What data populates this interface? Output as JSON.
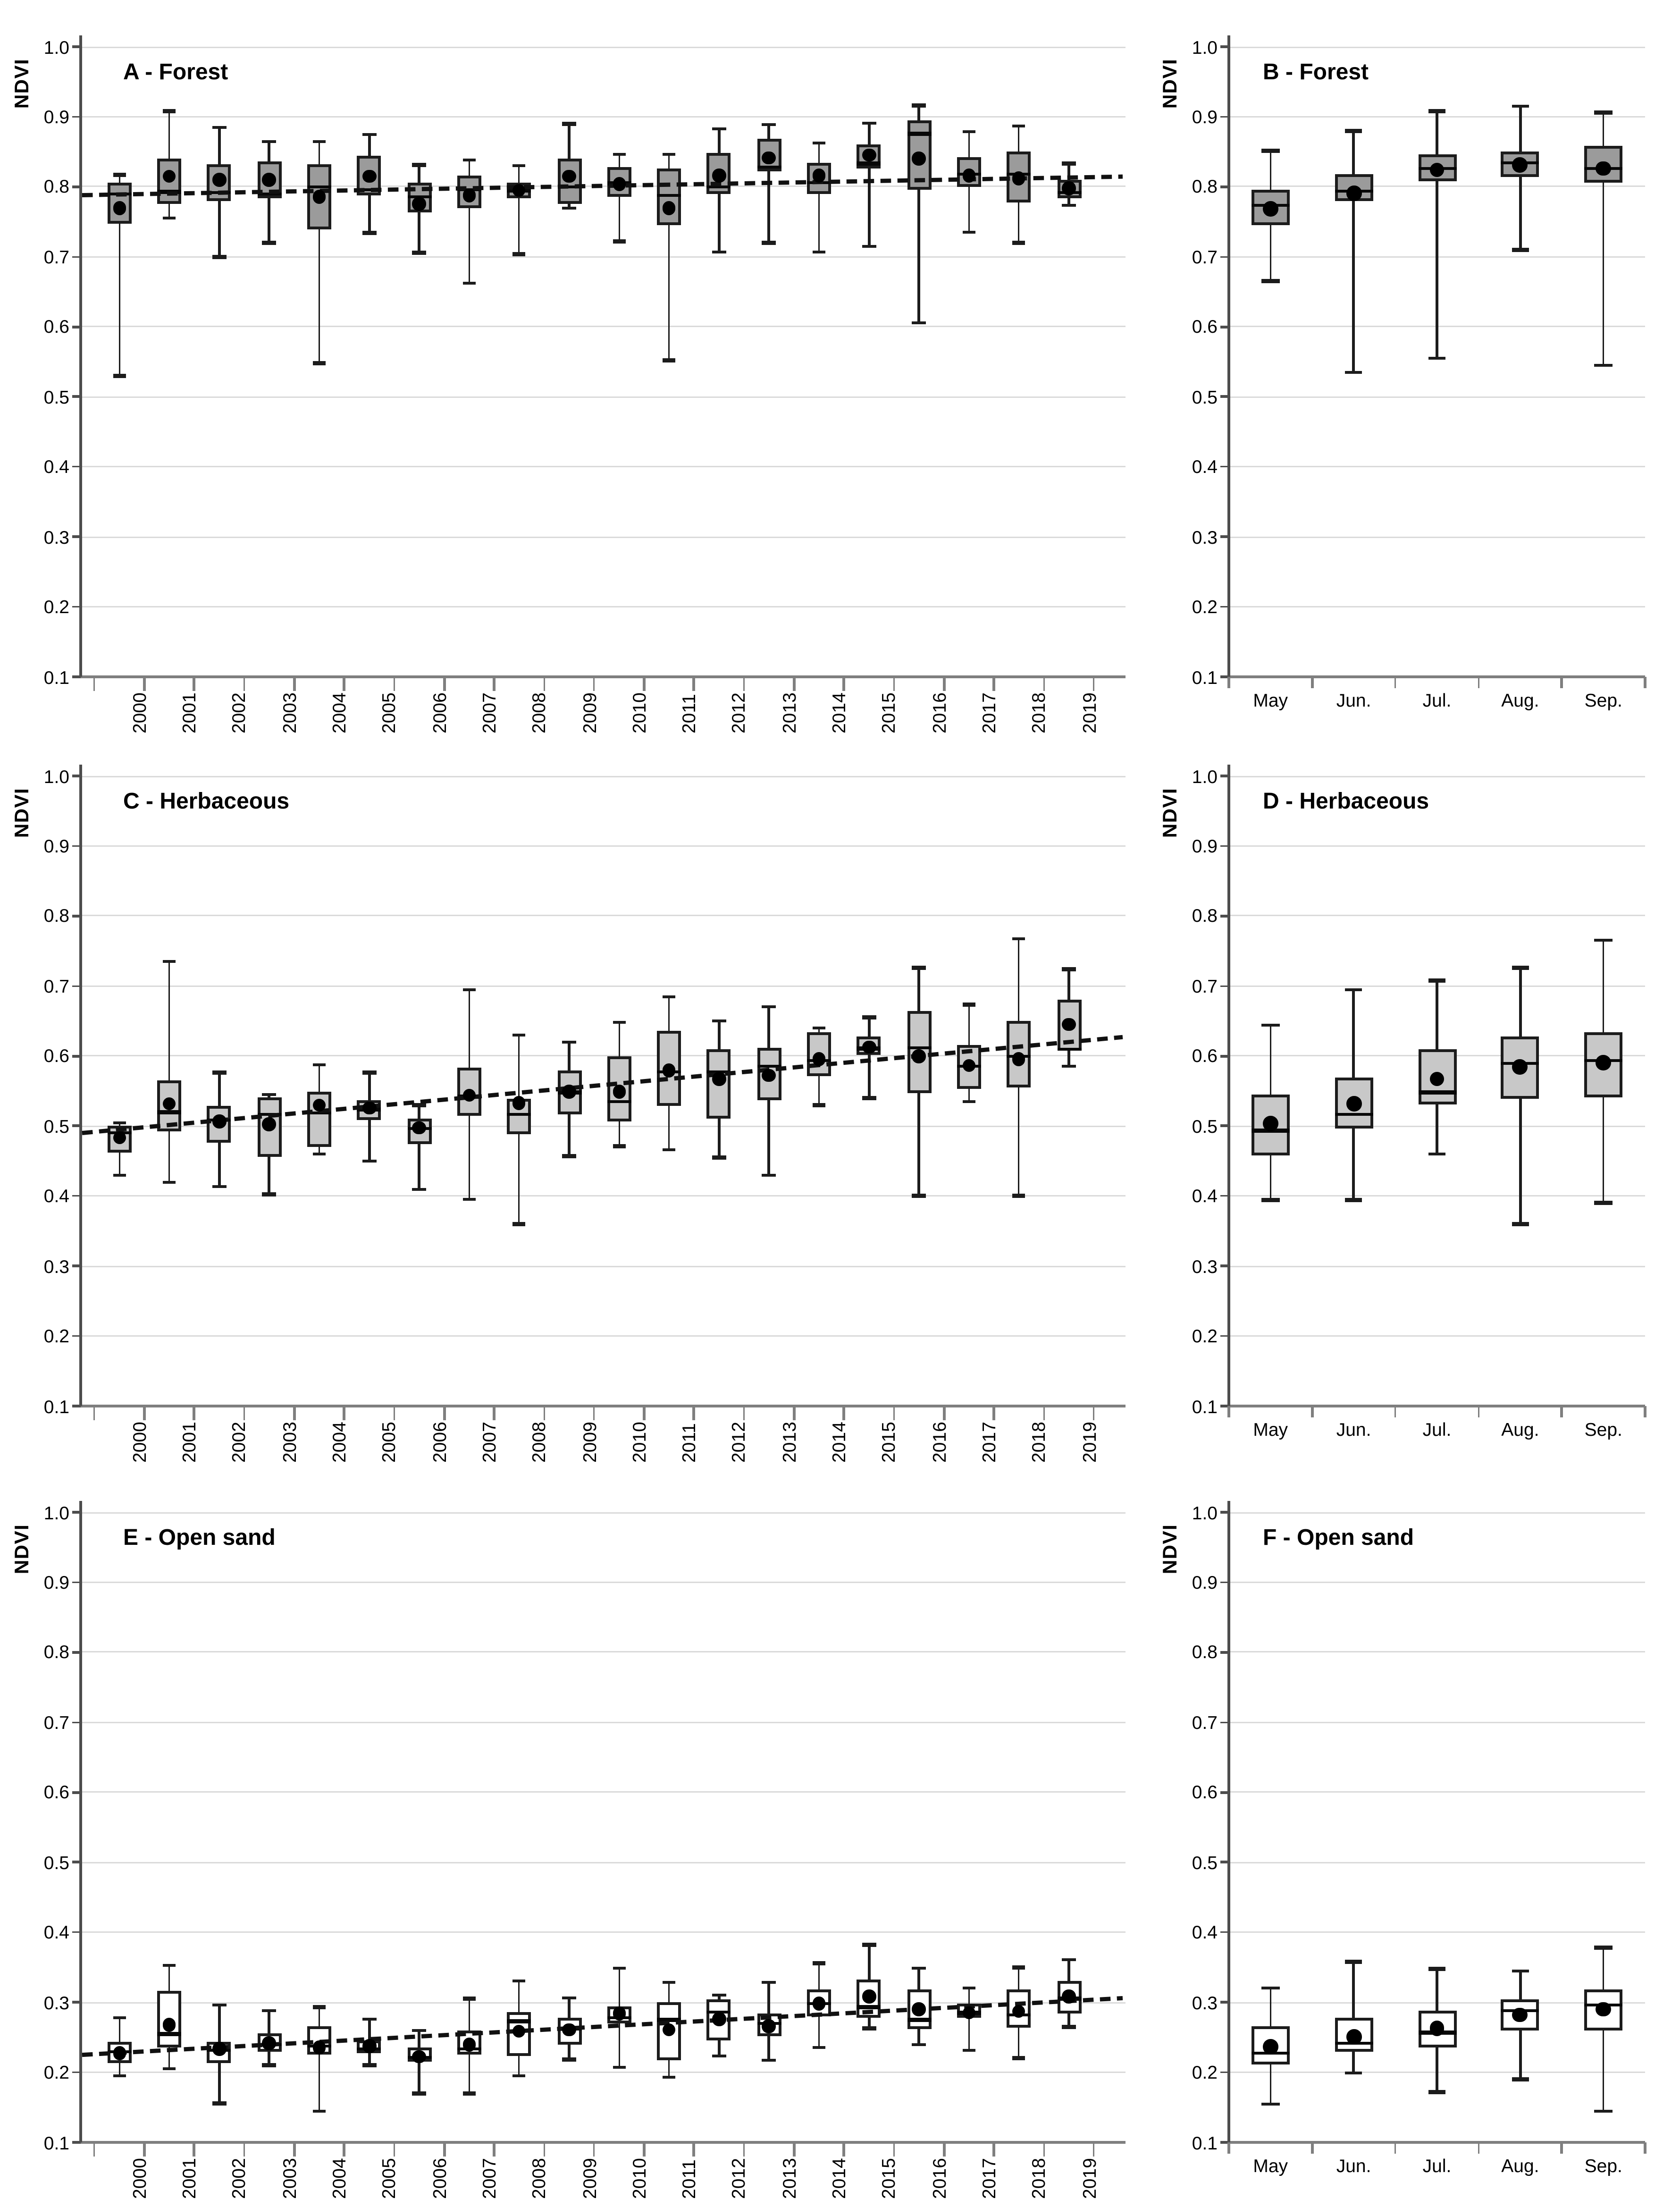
{
  "figure": {
    "ylabel": "NDVI",
    "yticks": [
      "1.0",
      "0.9",
      "0.8",
      "0.7",
      "0.6",
      "0.5",
      "0.4",
      "0.3",
      "0.2",
      "0.1"
    ],
    "colors": {
      "forest_fill": "#9b9b9b",
      "herbaceous_fill": "#c8c8c8",
      "open_sand_fill": "#ffffff",
      "box_border": "#1c1c1c",
      "mean_dot": "#000000",
      "trend_line": "#111111",
      "gridline": "#dadada",
      "axis": "#7f7f7f"
    }
  },
  "chart_data": [
    {
      "id": "A",
      "title": "A - Forest",
      "type": "box",
      "ylabel": "NDVI",
      "ylim": [
        0.1,
        1.0
      ],
      "grid": true,
      "fill": "#9b9b9b",
      "column": "left",
      "categories": [
        "2000",
        "2001",
        "2002",
        "2003",
        "2004",
        "2005",
        "2006",
        "2007",
        "2008",
        "2009",
        "2010",
        "2011",
        "2012",
        "2013",
        "2014",
        "2015",
        "2016",
        "2017",
        "2018",
        "2019"
      ],
      "boxes": [
        {
          "lo": 0.53,
          "q1": 0.748,
          "med": 0.79,
          "q3": 0.805,
          "hi": 0.817,
          "mean": 0.77
        },
        {
          "lo": 0.755,
          "q1": 0.775,
          "med": 0.793,
          "q3": 0.84,
          "hi": 0.908,
          "mean": 0.815
        },
        {
          "lo": 0.7,
          "q1": 0.78,
          "med": 0.792,
          "q3": 0.833,
          "hi": 0.885,
          "mean": 0.81
        },
        {
          "lo": 0.72,
          "q1": 0.784,
          "med": 0.79,
          "q3": 0.836,
          "hi": 0.865,
          "mean": 0.81
        },
        {
          "lo": 0.548,
          "q1": 0.74,
          "med": 0.8,
          "q3": 0.833,
          "hi": 0.864,
          "mean": 0.786
        },
        {
          "lo": 0.734,
          "q1": 0.788,
          "med": 0.796,
          "q3": 0.845,
          "hi": 0.875,
          "mean": 0.815
        },
        {
          "lo": 0.706,
          "q1": 0.764,
          "med": 0.786,
          "q3": 0.805,
          "hi": 0.831,
          "mean": 0.776
        },
        {
          "lo": 0.662,
          "q1": 0.77,
          "med": 0.796,
          "q3": 0.815,
          "hi": 0.838,
          "mean": 0.788
        },
        {
          "lo": 0.704,
          "q1": 0.784,
          "med": 0.795,
          "q3": 0.806,
          "hi": 0.83,
          "mean": 0.795
        },
        {
          "lo": 0.77,
          "q1": 0.776,
          "med": 0.8,
          "q3": 0.84,
          "hi": 0.89,
          "mean": 0.815
        },
        {
          "lo": 0.722,
          "q1": 0.786,
          "med": 0.805,
          "q3": 0.828,
          "hi": 0.846,
          "mean": 0.804
        },
        {
          "lo": 0.552,
          "q1": 0.745,
          "med": 0.788,
          "q3": 0.827,
          "hi": 0.846,
          "mean": 0.77
        },
        {
          "lo": 0.707,
          "q1": 0.79,
          "med": 0.8,
          "q3": 0.848,
          "hi": 0.883,
          "mean": 0.816
        },
        {
          "lo": 0.72,
          "q1": 0.822,
          "med": 0.828,
          "q3": 0.868,
          "hi": 0.889,
          "mean": 0.841
        },
        {
          "lo": 0.707,
          "q1": 0.79,
          "med": 0.806,
          "q3": 0.835,
          "hi": 0.863,
          "mean": 0.816
        },
        {
          "lo": 0.715,
          "q1": 0.826,
          "med": 0.833,
          "q3": 0.861,
          "hi": 0.891,
          "mean": 0.845
        },
        {
          "lo": 0.605,
          "q1": 0.796,
          "med": 0.876,
          "q3": 0.894,
          "hi": 0.916,
          "mean": 0.84
        },
        {
          "lo": 0.735,
          "q1": 0.8,
          "med": 0.818,
          "q3": 0.842,
          "hi": 0.879,
          "mean": 0.816
        },
        {
          "lo": 0.72,
          "q1": 0.778,
          "med": 0.818,
          "q3": 0.85,
          "hi": 0.887,
          "mean": 0.812
        },
        {
          "lo": 0.774,
          "q1": 0.784,
          "med": 0.792,
          "q3": 0.809,
          "hi": 0.833,
          "mean": 0.798
        }
      ],
      "trend": {
        "start": 0.788,
        "end": 0.8145
      }
    },
    {
      "id": "B",
      "title": "B - Forest",
      "type": "box",
      "ylabel": "NDVI",
      "ylim": [
        0.1,
        1.0
      ],
      "grid": true,
      "fill": "#9b9b9b",
      "column": "right",
      "categories": [
        "May",
        "Jun.",
        "Jul.",
        "Aug.",
        "Sep."
      ],
      "boxes": [
        {
          "lo": 0.665,
          "q1": 0.745,
          "med": 0.774,
          "q3": 0.796,
          "hi": 0.851,
          "mean": 0.769
        },
        {
          "lo": 0.535,
          "q1": 0.779,
          "med": 0.794,
          "q3": 0.818,
          "hi": 0.88,
          "mean": 0.79
        },
        {
          "lo": 0.555,
          "q1": 0.808,
          "med": 0.826,
          "q3": 0.847,
          "hi": 0.908,
          "mean": 0.824
        },
        {
          "lo": 0.71,
          "q1": 0.814,
          "med": 0.834,
          "q3": 0.851,
          "hi": 0.915,
          "mean": 0.831
        },
        {
          "lo": 0.545,
          "q1": 0.806,
          "med": 0.826,
          "q3": 0.859,
          "hi": 0.906,
          "mean": 0.826
        }
      ],
      "trend": null
    },
    {
      "id": "C",
      "title": "C - Herbaceous",
      "type": "box",
      "ylabel": "NDVI",
      "ylim": [
        0.1,
        1.0
      ],
      "grid": true,
      "fill": "#c8c8c8",
      "column": "left",
      "categories": [
        "2000",
        "2001",
        "2002",
        "2003",
        "2004",
        "2005",
        "2006",
        "2007",
        "2008",
        "2009",
        "2010",
        "2011",
        "2012",
        "2013",
        "2014",
        "2015",
        "2016",
        "2017",
        "2018",
        "2019"
      ],
      "boxes": [
        {
          "lo": 0.43,
          "q1": 0.462,
          "med": 0.49,
          "q3": 0.5,
          "hi": 0.505,
          "mean": 0.483
        },
        {
          "lo": 0.42,
          "q1": 0.492,
          "med": 0.52,
          "q3": 0.565,
          "hi": 0.735,
          "mean": 0.532
        },
        {
          "lo": 0.413,
          "q1": 0.477,
          "med": 0.509,
          "q3": 0.528,
          "hi": 0.576,
          "mean": 0.507
        },
        {
          "lo": 0.402,
          "q1": 0.455,
          "med": 0.517,
          "q3": 0.541,
          "hi": 0.545,
          "mean": 0.502
        },
        {
          "lo": 0.46,
          "q1": 0.47,
          "med": 0.519,
          "q3": 0.548,
          "hi": 0.587,
          "mean": 0.53
        },
        {
          "lo": 0.45,
          "q1": 0.508,
          "med": 0.524,
          "q3": 0.536,
          "hi": 0.576,
          "mean": 0.526
        },
        {
          "lo": 0.41,
          "q1": 0.475,
          "med": 0.496,
          "q3": 0.511,
          "hi": 0.53,
          "mean": 0.497
        },
        {
          "lo": 0.395,
          "q1": 0.515,
          "med": 0.542,
          "q3": 0.583,
          "hi": 0.695,
          "mean": 0.544
        },
        {
          "lo": 0.36,
          "q1": 0.488,
          "med": 0.517,
          "q3": 0.538,
          "hi": 0.63,
          "mean": 0.533
        },
        {
          "lo": 0.457,
          "q1": 0.517,
          "med": 0.548,
          "q3": 0.58,
          "hi": 0.62,
          "mean": 0.549
        },
        {
          "lo": 0.471,
          "q1": 0.507,
          "med": 0.535,
          "q3": 0.6,
          "hi": 0.648,
          "mean": 0.549
        },
        {
          "lo": 0.466,
          "q1": 0.528,
          "med": 0.577,
          "q3": 0.636,
          "hi": 0.684,
          "mean": 0.579
        },
        {
          "lo": 0.455,
          "q1": 0.51,
          "med": 0.577,
          "q3": 0.609,
          "hi": 0.65,
          "mean": 0.567
        },
        {
          "lo": 0.43,
          "q1": 0.537,
          "med": 0.586,
          "q3": 0.611,
          "hi": 0.67,
          "mean": 0.572
        },
        {
          "lo": 0.53,
          "q1": 0.572,
          "med": 0.594,
          "q3": 0.634,
          "hi": 0.64,
          "mean": 0.595
        },
        {
          "lo": 0.54,
          "q1": 0.602,
          "med": 0.611,
          "q3": 0.627,
          "hi": 0.655,
          "mean": 0.613
        },
        {
          "lo": 0.4,
          "q1": 0.547,
          "med": 0.612,
          "q3": 0.664,
          "hi": 0.726,
          "mean": 0.6
        },
        {
          "lo": 0.535,
          "q1": 0.553,
          "med": 0.585,
          "q3": 0.616,
          "hi": 0.673,
          "mean": 0.586
        },
        {
          "lo": 0.4,
          "q1": 0.556,
          "med": 0.6,
          "q3": 0.65,
          "hi": 0.768,
          "mean": 0.595
        },
        {
          "lo": 0.585,
          "q1": 0.607,
          "med": 0.61,
          "q3": 0.68,
          "hi": 0.724,
          "mean": 0.645
        }
      ],
      "trend": {
        "start": 0.49,
        "end": 0.627
      }
    },
    {
      "id": "D",
      "title": "D - Herbaceous",
      "type": "box",
      "ylabel": "NDVI",
      "ylim": [
        0.1,
        1.0
      ],
      "grid": true,
      "fill": "#c8c8c8",
      "column": "right",
      "categories": [
        "May",
        "Jun.",
        "Jul.",
        "Aug.",
        "Sep."
      ],
      "boxes": [
        {
          "lo": 0.394,
          "q1": 0.458,
          "med": 0.493,
          "q3": 0.545,
          "hi": 0.644,
          "mean": 0.504
        },
        {
          "lo": 0.394,
          "q1": 0.497,
          "med": 0.517,
          "q3": 0.569,
          "hi": 0.695,
          "mean": 0.532
        },
        {
          "lo": 0.46,
          "q1": 0.53,
          "med": 0.548,
          "q3": 0.609,
          "hi": 0.708,
          "mean": 0.567
        },
        {
          "lo": 0.36,
          "q1": 0.539,
          "med": 0.589,
          "q3": 0.628,
          "hi": 0.726,
          "mean": 0.585
        },
        {
          "lo": 0.39,
          "q1": 0.541,
          "med": 0.594,
          "q3": 0.633,
          "hi": 0.765,
          "mean": 0.59
        }
      ],
      "trend": null
    },
    {
      "id": "E",
      "title": "E - Open sand",
      "type": "box",
      "ylabel": "NDVI",
      "ylim": [
        0.1,
        1.0
      ],
      "grid": true,
      "fill": "#ffffff",
      "column": "left",
      "categories": [
        "2000",
        "2001",
        "2002",
        "2003",
        "2004",
        "2005",
        "2006",
        "2007",
        "2008",
        "2009",
        "2010",
        "2011",
        "2012",
        "2013",
        "2014",
        "2015",
        "2016",
        "2017",
        "2018",
        "2019"
      ],
      "boxes": [
        {
          "lo": 0.195,
          "q1": 0.213,
          "med": 0.23,
          "q3": 0.244,
          "hi": 0.278,
          "mean": 0.228
        },
        {
          "lo": 0.205,
          "q1": 0.235,
          "med": 0.255,
          "q3": 0.317,
          "hi": 0.353,
          "mean": 0.268
        },
        {
          "lo": 0.156,
          "q1": 0.214,
          "med": 0.232,
          "q3": 0.243,
          "hi": 0.296,
          "mean": 0.233
        },
        {
          "lo": 0.21,
          "q1": 0.229,
          "med": 0.24,
          "q3": 0.256,
          "hi": 0.288,
          "mean": 0.241
        },
        {
          "lo": 0.145,
          "q1": 0.226,
          "med": 0.238,
          "q3": 0.265,
          "hi": 0.293,
          "mean": 0.235
        },
        {
          "lo": 0.21,
          "q1": 0.228,
          "med": 0.234,
          "q3": 0.245,
          "hi": 0.276,
          "mean": 0.238
        },
        {
          "lo": 0.17,
          "q1": 0.215,
          "med": 0.221,
          "q3": 0.236,
          "hi": 0.26,
          "mean": 0.222
        },
        {
          "lo": 0.17,
          "q1": 0.226,
          "med": 0.233,
          "q3": 0.26,
          "hi": 0.305,
          "mean": 0.239
        },
        {
          "lo": 0.195,
          "q1": 0.223,
          "med": 0.273,
          "q3": 0.286,
          "hi": 0.33,
          "mean": 0.259
        },
        {
          "lo": 0.218,
          "q1": 0.24,
          "med": 0.262,
          "q3": 0.277,
          "hi": 0.306,
          "mean": 0.261
        },
        {
          "lo": 0.207,
          "q1": 0.269,
          "med": 0.278,
          "q3": 0.295,
          "hi": 0.349,
          "mean": 0.284
        },
        {
          "lo": 0.193,
          "q1": 0.218,
          "med": 0.275,
          "q3": 0.3,
          "hi": 0.328,
          "mean": 0.261
        },
        {
          "lo": 0.223,
          "q1": 0.246,
          "med": 0.286,
          "q3": 0.305,
          "hi": 0.31,
          "mean": 0.276
        },
        {
          "lo": 0.217,
          "q1": 0.251,
          "med": 0.27,
          "q3": 0.285,
          "hi": 0.328,
          "mean": 0.266
        },
        {
          "lo": 0.235,
          "q1": 0.28,
          "med": 0.298,
          "q3": 0.318,
          "hi": 0.356,
          "mean": 0.298
        },
        {
          "lo": 0.263,
          "q1": 0.277,
          "med": 0.293,
          "q3": 0.332,
          "hi": 0.382,
          "mean": 0.308
        },
        {
          "lo": 0.24,
          "q1": 0.261,
          "med": 0.275,
          "q3": 0.319,
          "hi": 0.349,
          "mean": 0.29
        },
        {
          "lo": 0.232,
          "q1": 0.277,
          "med": 0.285,
          "q3": 0.298,
          "hi": 0.32,
          "mean": 0.285
        },
        {
          "lo": 0.22,
          "q1": 0.264,
          "med": 0.282,
          "q3": 0.318,
          "hi": 0.35,
          "mean": 0.287
        },
        {
          "lo": 0.265,
          "q1": 0.284,
          "med": 0.305,
          "q3": 0.33,
          "hi": 0.361,
          "mean": 0.308
        }
      ],
      "trend": {
        "start": 0.225,
        "end": 0.306
      }
    },
    {
      "id": "F",
      "title": "F - Open sand",
      "type": "box",
      "ylabel": "NDVI",
      "ylim": [
        0.1,
        1.0
      ],
      "grid": true,
      "fill": "#ffffff",
      "column": "right",
      "categories": [
        "May",
        "Jun.",
        "Jul.",
        "Aug.",
        "Sep."
      ],
      "boxes": [
        {
          "lo": 0.155,
          "q1": 0.212,
          "med": 0.227,
          "q3": 0.265,
          "hi": 0.32,
          "mean": 0.236
        },
        {
          "lo": 0.199,
          "q1": 0.229,
          "med": 0.242,
          "q3": 0.277,
          "hi": 0.358,
          "mean": 0.251
        },
        {
          "lo": 0.172,
          "q1": 0.236,
          "med": 0.257,
          "q3": 0.288,
          "hi": 0.348,
          "mean": 0.263
        },
        {
          "lo": 0.19,
          "q1": 0.259,
          "med": 0.288,
          "q3": 0.305,
          "hi": 0.345,
          "mean": 0.282
        },
        {
          "lo": 0.145,
          "q1": 0.26,
          "med": 0.296,
          "q3": 0.319,
          "hi": 0.378,
          "mean": 0.29
        }
      ],
      "trend": null
    }
  ]
}
